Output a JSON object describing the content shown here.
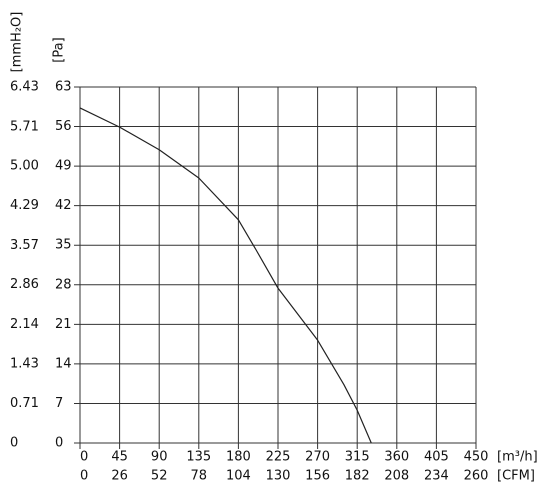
{
  "chart_data": {
    "type": "line",
    "x_label": "[m³/h]",
    "x2_label": "[CFM]",
    "y_label": "[Pa]",
    "y2_label": "[mmH₂O]",
    "x": [
      0,
      45,
      90,
      135,
      180,
      200,
      225,
      270,
      300,
      315,
      331
    ],
    "series": [
      {
        "color": "#222222",
        "values": [
          59.3,
          55.9,
          51.9,
          46.9,
          39.5,
          34.2,
          27.4,
          18.2,
          10.3,
          5.8,
          0
        ]
      }
    ],
    "xlim": [
      0,
      450
    ],
    "xticks": [
      0,
      45,
      90,
      135,
      180,
      225,
      270,
      315,
      360,
      405,
      450
    ],
    "x2lim": [
      0,
      260
    ],
    "x2ticks": [
      0,
      26,
      52,
      78,
      104,
      130,
      156,
      182,
      208,
      234,
      260
    ],
    "ylim": [
      0,
      63
    ],
    "yticks": [
      0,
      7,
      14,
      21,
      28,
      35,
      42,
      49,
      56,
      63
    ],
    "y2lim": [
      0,
      6.43
    ],
    "y2ticks": [
      0,
      0.71,
      1.43,
      2.14,
      2.86,
      3.57,
      4.29,
      {
        "value": 5,
        "label": "5.00"
      },
      5.71,
      6.43
    ],
    "grid": true
  }
}
